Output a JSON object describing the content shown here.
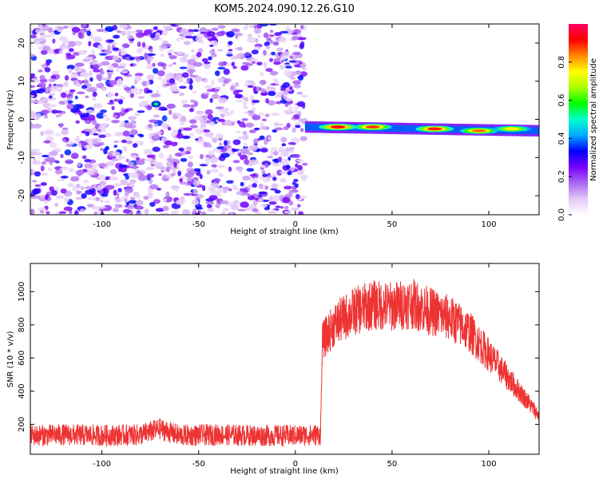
{
  "title": "KOM5.2024.090.12.26.G10",
  "chart_data": [
    {
      "type": "heatmap",
      "xlabel": "Height of straight line (km)",
      "ylabel": "Frequency (Hz)",
      "xlim": [
        -137,
        126
      ],
      "ylim": [
        -25,
        25
      ],
      "xticks": [
        -100,
        -50,
        0,
        50,
        100
      ],
      "yticks": [
        -20,
        -10,
        0,
        10,
        20
      ],
      "colorbar": {
        "label": "Normalized spectral amplitude",
        "range": [
          0,
          1
        ],
        "ticks": [
          0.0,
          0.2,
          0.4,
          0.6,
          0.8
        ],
        "tick_labels": [
          "0.0",
          "0.2",
          "0.4",
          "0.6",
          "0.8"
        ],
        "colormap": [
          "#ffffff",
          "#e3c8f7",
          "#aa66f0",
          "#7700ff",
          "#0000ff",
          "#00aaff",
          "#00ffcc",
          "#00ff00",
          "#aaff00",
          "#ffff00",
          "#ff8800",
          "#ff0000",
          "#ff0066"
        ]
      },
      "regions": [
        {
          "x_range": [
            -137,
            5
          ],
          "freq_range": [
            -25,
            25
          ],
          "description_level": "noise",
          "amplitude_range": [
            0.0,
            0.3
          ]
        },
        {
          "x_range": [
            5,
            126
          ],
          "freq_center_at_start": -2.0,
          "freq_center_at_end": -3.0,
          "freq_halfwidth": 1.5,
          "amplitude_range": [
            0.3,
            0.95
          ]
        }
      ],
      "hotspots": [
        {
          "x": -72,
          "y": 4,
          "amplitude": 0.35
        },
        {
          "x": 22,
          "y": -2,
          "amplitude": 0.92
        },
        {
          "x": 40,
          "y": -2,
          "amplitude": 0.88
        },
        {
          "x": 72,
          "y": -2.5,
          "amplitude": 0.9
        },
        {
          "x": 95,
          "y": -3,
          "amplitude": 0.85
        },
        {
          "x": 112,
          "y": -2.5,
          "amplitude": 0.75
        }
      ]
    },
    {
      "type": "line",
      "xlabel": "Height of straight line (km)",
      "ylabel": "SNR (10 * v/v)",
      "xlim": [
        -137,
        126
      ],
      "ylim": [
        20,
        1170
      ],
      "xticks": [
        -100,
        -50,
        0,
        50,
        100
      ],
      "yticks": [
        200,
        400,
        600,
        800,
        1000
      ],
      "color": "#ee3333",
      "series": [
        {
          "x": [
            -137,
            -120,
            -100,
            -80,
            -70,
            -60,
            -40,
            -20,
            0,
            13,
            14,
            20,
            30,
            40,
            50,
            60,
            70,
            80,
            90,
            100,
            110,
            120,
            126
          ],
          "values": [
            120,
            125,
            120,
            125,
            160,
            120,
            125,
            120,
            120,
            125,
            700,
            800,
            880,
            920,
            910,
            930,
            880,
            840,
            760,
            620,
            480,
            340,
            250
          ]
        }
      ]
    }
  ]
}
